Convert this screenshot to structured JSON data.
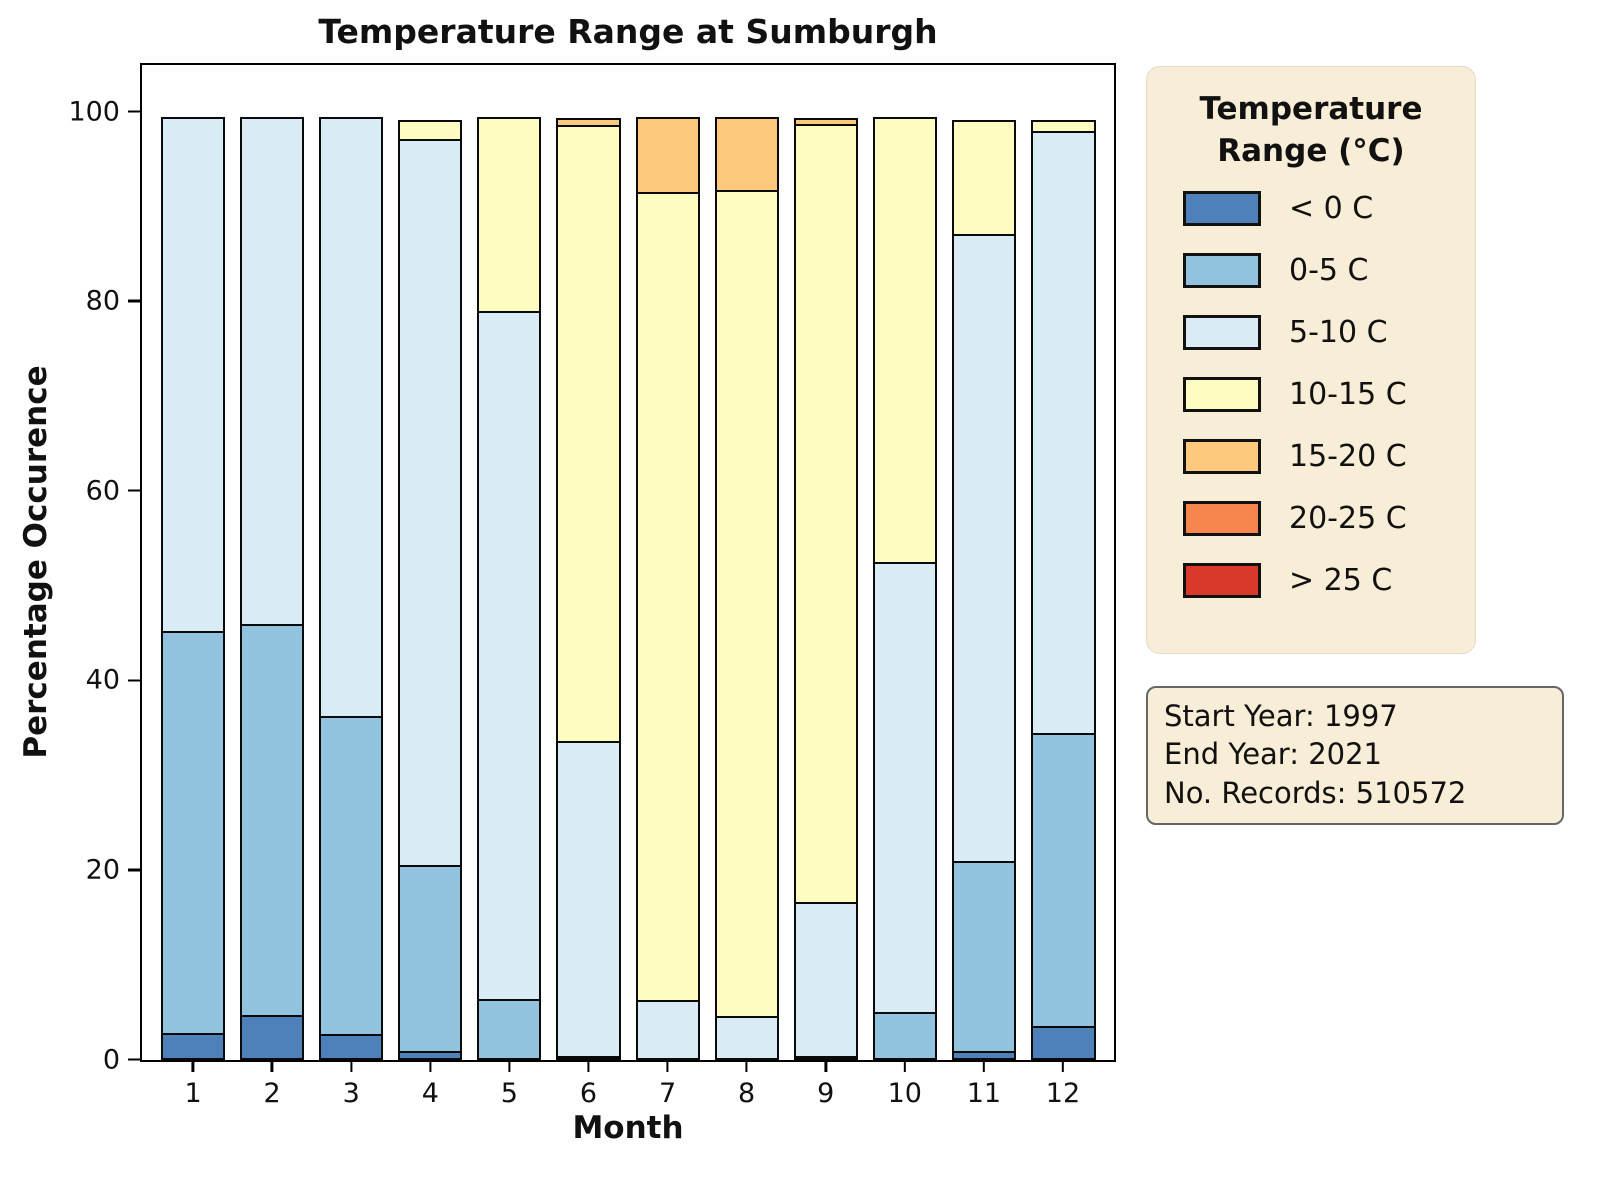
{
  "title": "Temperature Range at Sumburgh",
  "x_axis": {
    "label": "Month",
    "ticks": [
      "1",
      "2",
      "3",
      "4",
      "5",
      "6",
      "7",
      "8",
      "9",
      "10",
      "11",
      "12"
    ]
  },
  "y_axis": {
    "label": "Percentage Occurence",
    "ticks": [
      "0",
      "20",
      "40",
      "60",
      "80",
      "100"
    ]
  },
  "legend": {
    "title_line1": "Temperature",
    "title_line2": "Range (°C)"
  },
  "info_box": {
    "lines": [
      "Start Year: 1997",
      "End Year: 2021",
      "No. Records: 510572"
    ]
  },
  "chart_data": {
    "type": "bar",
    "stacked": true,
    "title": "Temperature Range at Sumburgh",
    "xlabel": "Month",
    "ylabel": "Percentage Occurence",
    "ylim": [
      0,
      105.3
    ],
    "grid": false,
    "legend_position": "right-outside",
    "categories": [
      1,
      2,
      3,
      4,
      5,
      6,
      7,
      8,
      9,
      10,
      11,
      12
    ],
    "series": [
      {
        "name": "< 0 C",
        "color": "#4e81ba",
        "values": [
          2.8,
          4.7,
          2.7,
          0.9,
          0,
          0,
          0,
          0,
          0,
          0,
          0.9,
          3.6
        ]
      },
      {
        "name": "0-5 C",
        "color": "#91c3df",
        "values": [
          42.7,
          41.6,
          33.8,
          19.9,
          6.4,
          0.3,
          0,
          0,
          0.3,
          5.1,
          20.4,
          31.2
        ]
      },
      {
        "name": "5-10 C",
        "color": "#d9ecf5",
        "values": [
          54.5,
          53.7,
          63.5,
          76.9,
          72.9,
          33.5,
          6.3,
          4.6,
          16.5,
          47.7,
          66.4,
          63.7
        ]
      },
      {
        "name": "10-15 C",
        "color": "#fdfdc1",
        "values": [
          0,
          0,
          0,
          2.3,
          20.7,
          65.2,
          85.5,
          87.4,
          82.3,
          47.2,
          12.3,
          1.5
        ]
      },
      {
        "name": "15-20 C",
        "color": "#fdca7d",
        "values": [
          0,
          0,
          0,
          0,
          0,
          1.0,
          8.2,
          8.0,
          0.9,
          0,
          0,
          0
        ]
      },
      {
        "name": "20-25 C",
        "color": "#f6854e",
        "values": [
          0,
          0,
          0,
          0,
          0,
          0,
          0,
          0,
          0,
          0,
          0,
          0
        ]
      },
      {
        "name": "> 25 C",
        "color": "#d8392b",
        "values": [
          0,
          0,
          0,
          0,
          0,
          0,
          0,
          0,
          0,
          0,
          0,
          0
        ]
      }
    ],
    "annotations": [
      "Start Year: 1997",
      "End Year: 2021",
      "No. Records: 510572"
    ]
  }
}
